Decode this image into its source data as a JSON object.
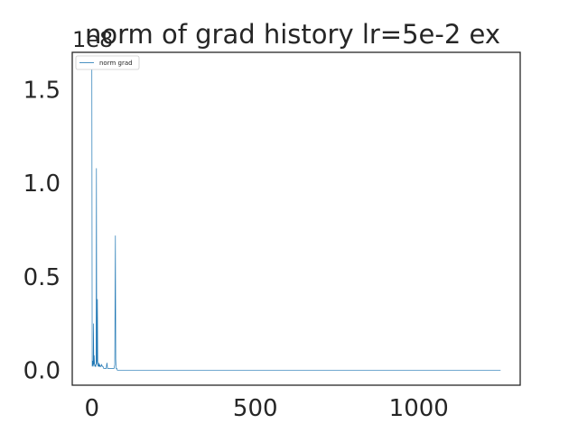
{
  "chart_data": {
    "type": "line",
    "title": "norm of grad history lr=5e-2 ex",
    "offset_label": "1e8",
    "xlabel": "",
    "ylabel": "",
    "xlim": [
      -60,
      1310
    ],
    "ylim": [
      -0.08,
      1.7
    ],
    "x_ticks": [
      0,
      500,
      1000
    ],
    "y_ticks": [
      0.0,
      0.5,
      1.0,
      1.5
    ],
    "x_tick_labels": [
      "0",
      "500",
      "1000"
    ],
    "y_tick_labels": [
      "0.0",
      "0.5",
      "1.0",
      "1.5"
    ],
    "grid": false,
    "legend": {
      "position": "top-left",
      "entries": [
        "norm grad"
      ]
    },
    "color": "#1f77b4",
    "series": [
      {
        "name": "norm grad",
        "x": [
          0,
          1,
          2,
          3,
          4,
          5,
          6,
          7,
          8,
          9,
          10,
          11,
          12,
          13,
          14,
          15,
          16,
          17,
          18,
          19,
          20,
          21,
          22,
          23,
          24,
          25,
          26,
          28,
          30,
          32,
          34,
          36,
          38,
          40,
          42,
          44,
          46,
          48,
          50,
          52,
          54,
          56,
          58,
          60,
          62,
          64,
          66,
          68,
          70,
          72,
          73,
          74,
          75,
          76,
          78,
          80,
          85,
          90,
          100,
          120,
          150,
          200,
          300,
          400,
          500,
          600,
          700,
          800,
          900,
          1000,
          1100,
          1200,
          1250
        ],
        "y": [
          1.62,
          0.02,
          0.03,
          0.05,
          0.02,
          0.25,
          0.03,
          0.08,
          0.04,
          0.02,
          0.03,
          0.02,
          0.02,
          0.04,
          1.08,
          0.03,
          0.05,
          0.38,
          0.04,
          0.02,
          0.03,
          0.02,
          0.04,
          0.02,
          0.02,
          0.03,
          0.02,
          0.02,
          0.03,
          0.02,
          0.02,
          0.01,
          0.01,
          0.01,
          0.01,
          0.01,
          0.04,
          0.01,
          0.01,
          0.01,
          0.01,
          0.01,
          0.01,
          0.01,
          0.01,
          0.01,
          0.01,
          0.01,
          0.03,
          0.72,
          0.06,
          0.01,
          0.01,
          0.01,
          0.0,
          0.0,
          0.0,
          0.0,
          0.0,
          0.0,
          0.0,
          0.0,
          0.0,
          0.0,
          0.0,
          0.0,
          0.0,
          0.0,
          0.0,
          0.0,
          0.0,
          0.0,
          0.0
        ]
      }
    ]
  }
}
